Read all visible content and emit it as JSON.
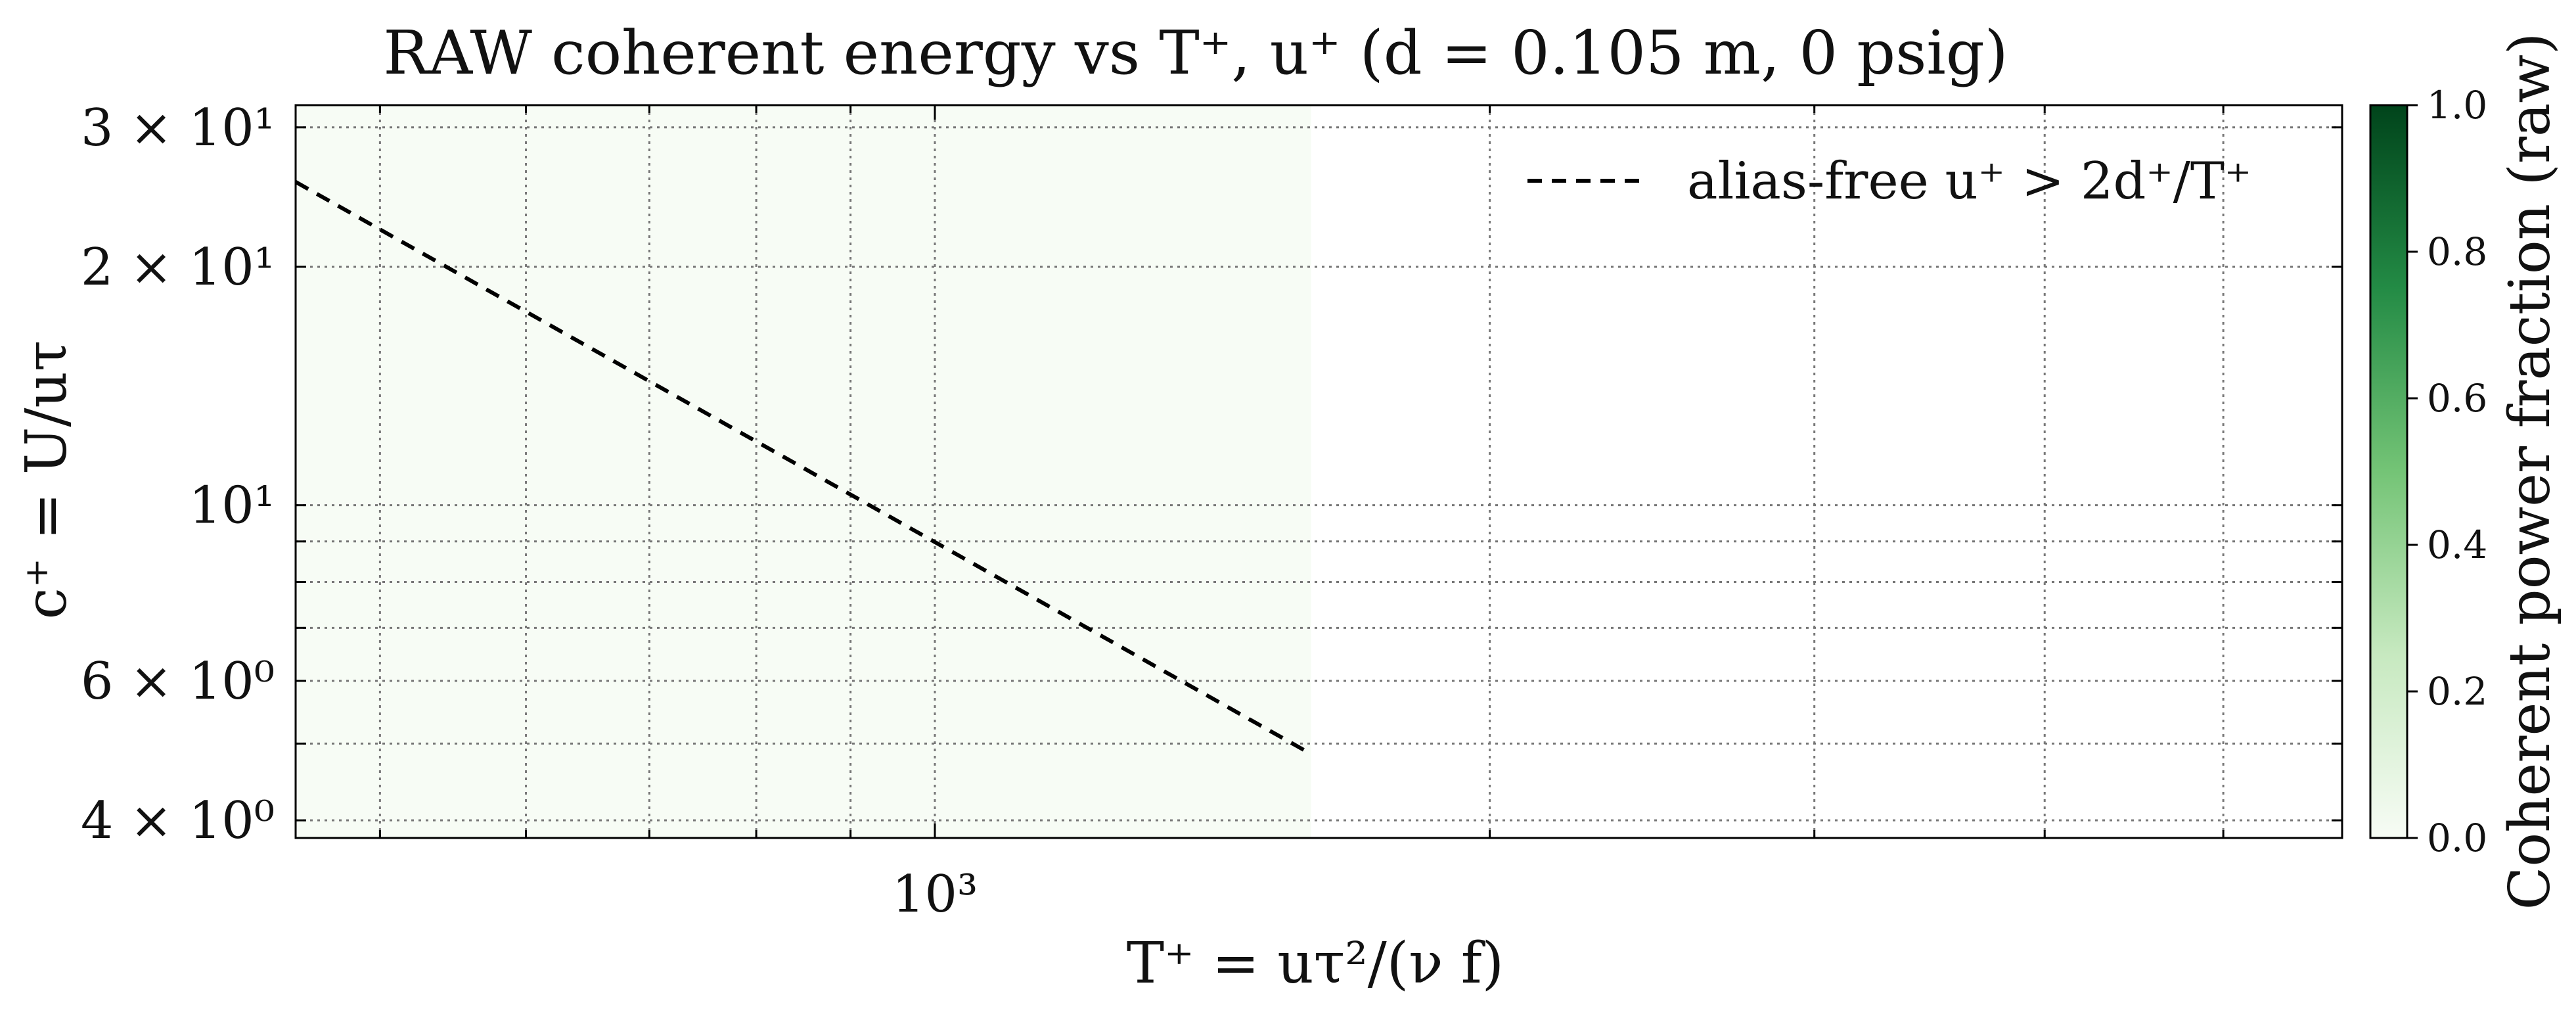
{
  "chart_data": {
    "type": "heatmap",
    "title": "RAW coherent energy vs T⁺, u⁺ (d = 0.105 m, 0 psig)",
    "xlabel": "T⁺ = uτ²/(ν f)",
    "ylabel": "c⁺ = U/uτ",
    "x_scale": "log",
    "y_scale": "log",
    "xlim": [
      450,
      5800
    ],
    "ylim": [
      3.8,
      32
    ],
    "x_ticks": [
      {
        "value": 1000,
        "label": "10³"
      }
    ],
    "y_ticks": [
      {
        "value": 30,
        "label": "3 × 10¹"
      },
      {
        "value": 20,
        "label": "2 × 10¹"
      },
      {
        "value": 10,
        "label": "10¹"
      },
      {
        "value": 6,
        "label": "6 × 10⁰"
      },
      {
        "value": 4,
        "label": "4 × 10⁰"
      }
    ],
    "x_minor_ticks": [
      500,
      600,
      700,
      800,
      900,
      2000,
      3000,
      4000,
      5000
    ],
    "y_minor_ticks": [
      5,
      7,
      8,
      9
    ],
    "grid": true,
    "heatmap": {
      "x_range": [
        450,
        1600
      ],
      "y_range": [
        3.8,
        32
      ],
      "value": 0.01,
      "colormap": "Greens",
      "low_color": "#f7fcf5",
      "high_color": "#00441b"
    },
    "series": [
      {
        "name": "alias-free u⁺ > 2d⁺/T⁺",
        "style": "dashed",
        "color": "#000000",
        "x": [
          450,
          1600
        ],
        "y": [
          25.6,
          4.85
        ]
      }
    ],
    "legend_position": "top-right",
    "colorbar": {
      "label": "Coherent power fraction (raw)",
      "range": [
        0.0,
        1.0
      ],
      "ticks": [
        "0.0",
        "0.2",
        "0.4",
        "0.6",
        "0.8",
        "1.0"
      ]
    }
  }
}
